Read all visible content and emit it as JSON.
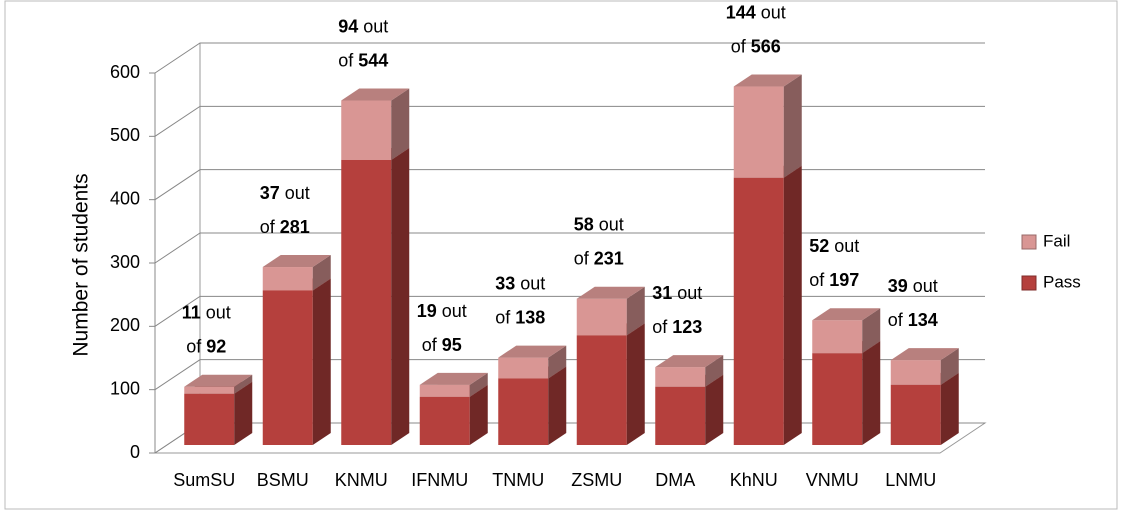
{
  "chart_data": {
    "type": "bar3d_stacked",
    "y_axis_label": "Number of students",
    "categories": [
      "SumSU",
      "BSMU",
      "KNMU",
      "IFNMU",
      "TNMU",
      "ZSMU",
      "DMA",
      "KhNU",
      "VNMU",
      "LNMU"
    ],
    "series": [
      {
        "name": "Pass",
        "color": "#b5403d",
        "values": [
          81,
          244,
          450,
          76,
          105,
          173,
          92,
          422,
          145,
          95
        ]
      },
      {
        "name": "Fail",
        "color": "#d99694",
        "values": [
          11,
          37,
          94,
          19,
          33,
          58,
          31,
          144,
          52,
          39
        ],
        "value_labels": [
          "11 out of 92",
          "37 out of 281",
          "94 out of 544",
          "19 out of 95",
          "33 out of 138",
          "58 out of 231",
          "31 out of 123",
          "144 out of 566",
          "52 out of 197",
          "39 out of 134"
        ]
      }
    ],
    "ylim": [
      0,
      600
    ],
    "yticks": [
      0,
      100,
      200,
      300,
      400,
      500,
      600
    ],
    "grid": true,
    "legend": "right"
  }
}
